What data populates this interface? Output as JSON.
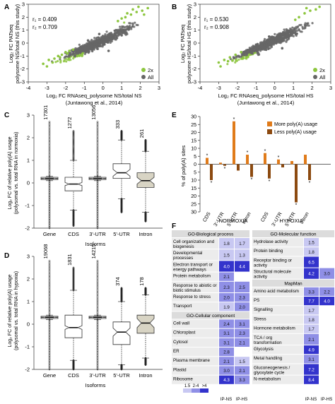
{
  "panels": {
    "A": {
      "letter": "A",
      "r1": "r₁ = 0.409",
      "r2": "r₂ = 0.709",
      "ylabel1": "Log₂ FC PATseq",
      "ylabel2": "polysome NS/total NS (this study)",
      "xlabel1": "Log₂ FC RNAseq_polysome NS/total NS",
      "xlabel2": "(Juntawong et al., 2014)",
      "legend": [
        "2x",
        "All"
      ]
    },
    "B": {
      "letter": "B",
      "r1": "r₁ = 0.530",
      "r2": "r₂ = 0.908",
      "ylabel1": "Log₂ FC PATseq",
      "ylabel2": "polysome HS/total HS (this study)",
      "xlabel1": "Log₂ FC RNAseq_polysome HS/total HS",
      "xlabel2": "(Juntawong et al., 2014)",
      "legend": [
        "2x",
        "All"
      ]
    },
    "C": {
      "letter": "C",
      "ylabel1": "Log₂ FC of relative poly(A) usage",
      "ylabel2": "(polysomal vs. total RNA in normoxia)",
      "xlabel": "Isoforms",
      "categories": [
        "Gene",
        "CDS",
        "3'-UTR",
        "5'-UTR",
        "Intron"
      ],
      "counts": [
        "17301",
        "1272",
        "13056",
        "333",
        "261"
      ]
    },
    "D": {
      "letter": "D",
      "ylabel1": "Log₂ FC of relative poly(A) usage",
      "ylabel2": "(polysomal vs. total RNA in hypoxia)",
      "xlabel": "Isoforms",
      "categories": [
        "Gene",
        "CDS",
        "3'-UTR",
        "5'-UTR",
        "Intron"
      ],
      "counts": [
        "19068",
        "1831",
        "14215",
        "374",
        "178"
      ]
    },
    "E": {
      "letter": "E",
      "ylabel": "% of poly(A) sites",
      "legend": [
        "More poly(A) usage",
        "Less poly(A) usage"
      ],
      "groups": [
        "NORMOXIA",
        "HYPOXIA"
      ],
      "categories": [
        "CDS",
        "3'-UTR",
        "5'-UTR",
        "Intron"
      ]
    },
    "F": {
      "letter": "F"
    }
  },
  "chart_data": [
    {
      "id": "A",
      "type": "scatter",
      "xlim": [
        -4,
        3
      ],
      "ylim": [
        -3,
        3
      ],
      "xticks": [
        "-4",
        "-3",
        "-2",
        "-1",
        "0",
        "1",
        "2",
        "3"
      ],
      "yticks": [
        "3",
        "2",
        "1",
        "0",
        "-1",
        "-2",
        "-3"
      ],
      "series": [
        {
          "name": "2x",
          "color": "#8dc63f",
          "points": [
            [
              -3.2,
              -1.6
            ],
            [
              -2.9,
              -1.3
            ],
            [
              -2.6,
              -1.2
            ],
            [
              -2.4,
              -1.0
            ],
            [
              -2.2,
              -0.9
            ],
            [
              -2.0,
              -0.7
            ],
            [
              -1.8,
              -0.6
            ],
            [
              -1.6,
              -0.5
            ],
            [
              -3.0,
              -1.8
            ],
            [
              -2.7,
              -1.5
            ],
            [
              -2.3,
              -1.1
            ],
            [
              -1.9,
              -0.8
            ],
            [
              1.2,
              2.0
            ],
            [
              1.5,
              2.2
            ],
            [
              1.8,
              2.4
            ],
            [
              2.1,
              2.5
            ],
            [
              2.4,
              2.7
            ],
            [
              1.6,
              2.6
            ],
            [
              1.9,
              2.8
            ],
            [
              1.0,
              1.9
            ],
            [
              1.3,
              2.3
            ],
            [
              2.2,
              2.2
            ],
            [
              0.8,
              1.7
            ]
          ]
        },
        {
          "name": "All",
          "color": "#666666",
          "points": [
            [
              -1.5,
              -1.0
            ],
            [
              -1.0,
              -0.6
            ],
            [
              -0.5,
              -0.3
            ],
            [
              0.0,
              0.0
            ],
            [
              0.5,
              0.3
            ],
            [
              1.0,
              0.6
            ],
            [
              -0.8,
              0.2
            ],
            [
              0.3,
              -0.6
            ],
            [
              -0.2,
              0.7
            ],
            [
              0.7,
              1.0
            ],
            [
              -1.2,
              -0.3
            ],
            [
              1.4,
              1.2
            ]
          ]
        }
      ]
    },
    {
      "id": "B",
      "type": "scatter",
      "xlim": [
        -4,
        3
      ],
      "ylim": [
        -3,
        3
      ],
      "xticks": [
        "-4",
        "-3",
        "-2",
        "-1",
        "0",
        "1",
        "2",
        "3"
      ],
      "yticks": [
        "3",
        "2",
        "1",
        "0",
        "-1",
        "-2",
        "-3"
      ],
      "series": [
        {
          "name": "2x",
          "color": "#8dc63f",
          "points": [
            [
              -3.0,
              -1.5
            ],
            [
              -2.7,
              -1.3
            ],
            [
              -2.4,
              -1.1
            ],
            [
              -2.1,
              -0.9
            ],
            [
              -1.8,
              -0.7
            ],
            [
              -2.9,
              -1.8
            ],
            [
              -2.5,
              -1.4
            ],
            [
              1.3,
              2.0
            ],
            [
              1.6,
              2.3
            ],
            [
              1.9,
              2.5
            ],
            [
              2.2,
              2.6
            ],
            [
              1.1,
              1.8
            ],
            [
              1.7,
              2.7
            ],
            [
              2.4,
              2.8
            ]
          ]
        },
        {
          "name": "All",
          "color": "#666666",
          "points": [
            [
              -1.2,
              -0.8
            ],
            [
              -0.6,
              -0.4
            ],
            [
              0.0,
              0.0
            ],
            [
              0.6,
              0.4
            ],
            [
              1.0,
              0.8
            ],
            [
              -0.3,
              0.5
            ],
            [
              0.4,
              -0.4
            ]
          ]
        }
      ]
    },
    {
      "id": "C",
      "type": "box",
      "ylim": [
        -2,
        3
      ],
      "yticks": [
        "3",
        "2",
        "1",
        "0",
        "-1",
        "-2"
      ],
      "categories": [
        "Gene",
        "CDS",
        "3'-UTR",
        "5'-UTR",
        "Intron"
      ],
      "boxes": [
        {
          "q1": 0.15,
          "median": 0.2,
          "q3": 0.25,
          "notch": 0.01,
          "whisker_low": 0.1,
          "whisker_high": 0.3,
          "outlier_min": -2.0,
          "outlier_max": 2.7,
          "fill": "#ffffff"
        },
        {
          "q1": -0.35,
          "median": -0.05,
          "q3": 0.25,
          "notch": 0.07,
          "whisker_low": -1.2,
          "whisker_high": 1.0,
          "outlier_min": -1.9,
          "outlier_max": 2.3,
          "fill": "#ffffff"
        },
        {
          "q1": 0.15,
          "median": 0.2,
          "q3": 0.25,
          "notch": 0.01,
          "whisker_low": 0.1,
          "whisker_high": 0.3,
          "outlier_min": -2.0,
          "outlier_max": 2.7,
          "fill": "#ffffff"
        },
        {
          "q1": 0.2,
          "median": 0.45,
          "q3": 0.85,
          "notch": 0.15,
          "whisker_low": -0.7,
          "whisker_high": 1.9,
          "outlier_min": -1.3,
          "outlier_max": 2.3,
          "fill": "#ffffff"
        },
        {
          "q1": -0.2,
          "median": 0.1,
          "q3": 0.45,
          "notch": 0.15,
          "whisker_low": -1.3,
          "whisker_high": 1.4,
          "outlier_min": -1.7,
          "outlier_max": 1.9,
          "fill": "#d8d4c4"
        }
      ]
    },
    {
      "id": "D",
      "type": "box",
      "ylim": [
        -2,
        3
      ],
      "yticks": [
        "3",
        "2",
        "1",
        "0",
        "-1",
        "-2"
      ],
      "categories": [
        "Gene",
        "CDS",
        "3'-UTR",
        "5'-UTR",
        "Intron"
      ],
      "boxes": [
        {
          "q1": 0.25,
          "median": 0.3,
          "q3": 0.35,
          "notch": 0.01,
          "whisker_low": 0.2,
          "whisker_high": 0.4,
          "outlier_min": -2.0,
          "outlier_max": 2.8,
          "fill": "#ffffff"
        },
        {
          "q1": -0.6,
          "median": -0.15,
          "q3": 0.4,
          "notch": 0.08,
          "whisker_low": -1.6,
          "whisker_high": 1.5,
          "outlier_min": -2.0,
          "outlier_max": 2.5,
          "fill": "#ffffff"
        },
        {
          "q1": 0.25,
          "median": 0.3,
          "q3": 0.35,
          "notch": 0.01,
          "whisker_low": 0.2,
          "whisker_high": 0.4,
          "outlier_min": -2.0,
          "outlier_max": 2.8,
          "fill": "#ffffff"
        },
        {
          "q1": -0.9,
          "median": -0.35,
          "q3": 0.1,
          "notch": 0.18,
          "whisker_low": -1.8,
          "whisker_high": 1.0,
          "outlier_min": -2.0,
          "outlier_max": 1.6,
          "fill": "#ffffff"
        },
        {
          "q1": -0.4,
          "median": 0.05,
          "q3": 0.4,
          "notch": 0.2,
          "whisker_low": -1.5,
          "whisker_high": 1.3,
          "outlier_min": -1.8,
          "outlier_max": 1.6,
          "fill": "#d8d4c4"
        }
      ]
    },
    {
      "id": "E",
      "type": "bar",
      "ylim": [
        -30,
        30
      ],
      "yticks": [
        "30",
        "25",
        "20",
        "15",
        "10",
        "5",
        "0",
        "5",
        "10",
        "15",
        "20",
        "25",
        "30"
      ],
      "groups": [
        "NORMOXIA",
        "HYPOXIA"
      ],
      "categories": [
        "CDS",
        "3'-UTR",
        "5'-UTR",
        "Intron"
      ],
      "series": [
        {
          "name": "More poly(A) usage",
          "color": "#e07b1a",
          "values": [
            [
              4,
              1,
              27,
              6
            ],
            [
              7,
              3,
              2,
              6
            ]
          ]
        },
        {
          "name": "Less poly(A) usage",
          "color": "#8c4a10",
          "values": [
            [
              10,
              1,
              4,
              8
            ],
            [
              9,
              2,
              24,
              10
            ]
          ]
        }
      ],
      "significant": [
        [
          [
            true,
            false,
            true,
            true
          ],
          [
            true,
            true,
            false,
            true
          ]
        ],
        [
          [
            true,
            true,
            false,
            false
          ],
          [
            true,
            false,
            true,
            true
          ]
        ]
      ]
    },
    {
      "id": "F",
      "type": "heatmap",
      "legend_scale": [
        "1.5",
        "2-4",
        ">4"
      ],
      "columns": [
        "IP-NS",
        "IP-HS"
      ],
      "left": {
        "sections": [
          {
            "title": "GO-Biological process",
            "rows": [
              {
                "label": "Cell organization and biogenesis",
                "v": [
                  "1.8",
                  "1.7"
                ]
              },
              {
                "label": "Developmental processes",
                "v": [
                  "1.5",
                  "1.3"
                ]
              },
              {
                "label": "Electron transport or energy pathways",
                "v": [
                  "4.0",
                  "4.4"
                ]
              },
              {
                "label": "Protein metabolism",
                "v": [
                  "2.1",
                  ""
                ]
              },
              {
                "label": "Response to abiotic or biotic stimulus",
                "v": [
                  "2.3",
                  "2.5"
                ]
              },
              {
                "label": "Response to stress",
                "v": [
                  "2.0",
                  "2.3"
                ]
              },
              {
                "label": "Transport",
                "v": [
                  "1.9",
                  "2.0"
                ]
              }
            ]
          },
          {
            "title": "GO-Cellular component",
            "rows": [
              {
                "label": "Cell wall",
                "v": [
                  "2.4",
                  "3.1"
                ]
              },
              {
                "label": "Chloroplast",
                "v": [
                  "3.1",
                  "2.3"
                ]
              },
              {
                "label": "Cytosol",
                "v": [
                  "3.1",
                  "2.1"
                ]
              },
              {
                "label": "ER",
                "v": [
                  "2.8",
                  ""
                ]
              },
              {
                "label": "Plasma membrane",
                "v": [
                  "2.1",
                  "1.5"
                ]
              },
              {
                "label": "Plastid",
                "v": [
                  "3.0",
                  "2.1"
                ]
              },
              {
                "label": "Ribosome",
                "v": [
                  "4.3",
                  "3.3"
                ]
              }
            ]
          }
        ]
      },
      "right": {
        "sections": [
          {
            "title": "GO-Molecular function",
            "rows": [
              {
                "label": "Hydrolase activity",
                "v": [
                  "1.5",
                  ""
                ]
              },
              {
                "label": "Protein binding",
                "v": [
                  "1.8",
                  ""
                ]
              },
              {
                "label": "Receptor binding or activity",
                "v": [
                  "6.5",
                  ""
                ]
              },
              {
                "label": "Structural molecule activity",
                "v": [
                  "4.2",
                  "3.0"
                ]
              }
            ]
          },
          {
            "title": "MapMan",
            "rows": [
              {
                "label": "Amino acid metabolism",
                "v": [
                  "3.3",
                  "2.2"
                ]
              },
              {
                "label": "PS",
                "v": [
                  "7.7",
                  "4.0"
                ]
              },
              {
                "label": "Signalling",
                "v": [
                  "1.7",
                  ""
                ]
              },
              {
                "label": "Stress",
                "v": [
                  "1.8",
                  ""
                ]
              },
              {
                "label": "Hormone metabolism",
                "v": [
                  "1.7",
                  ""
                ]
              },
              {
                "label": "TCA / org transformation",
                "v": [
                  "2.1",
                  ""
                ]
              },
              {
                "label": "Glycolysis",
                "v": [
                  "4.9",
                  ""
                ]
              },
              {
                "label": "Metal handling",
                "v": [
                  "3.1",
                  ""
                ]
              },
              {
                "label": "Gluconeogenesis / glyoxylate cycle",
                "v": [
                  "7.2",
                  ""
                ]
              },
              {
                "label": "N-metabolism",
                "v": [
                  "8.4",
                  ""
                ]
              }
            ]
          }
        ]
      }
    }
  ]
}
